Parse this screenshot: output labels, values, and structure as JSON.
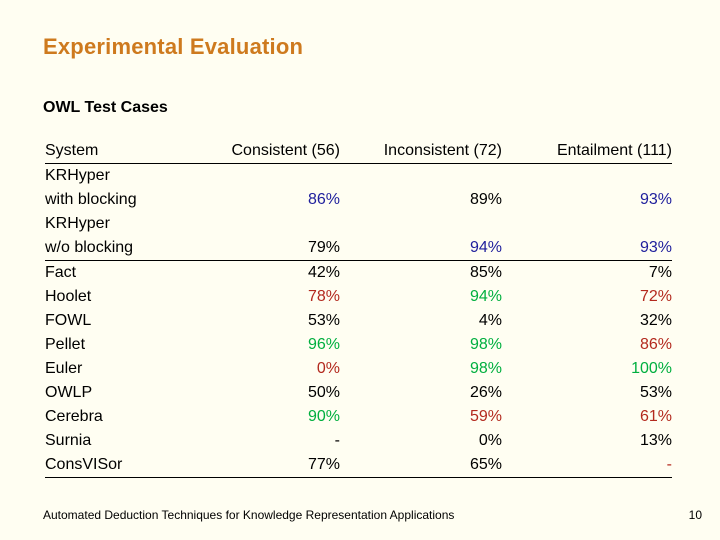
{
  "slide": {
    "title": "Experimental Evaluation",
    "subtitle": "OWL Test Cases",
    "footer": "Automated Deduction Techniques for Knowledge Representation Applications",
    "page_number": "10"
  },
  "colors": {
    "background": "#FFFEF2",
    "title": "#CE7A1E",
    "text": "#000000",
    "blue": "#1E1E9C",
    "green": "#00AF3F",
    "red": "#B3291E"
  },
  "chart_data": {
    "type": "table",
    "columns": [
      "System",
      "Consistent (56)",
      "Inconsistent (72)",
      "Entailment (111)"
    ],
    "lines": [
      {
        "label": "KRHyper",
        "cells": null,
        "rule_below": false
      },
      {
        "label": "with blocking",
        "cells": [
          {
            "t": "86%",
            "c": "blue"
          },
          {
            "t": "89%",
            "c": "text"
          },
          {
            "t": "93%",
            "c": "blue"
          }
        ],
        "rule_below": false
      },
      {
        "label": "KRHyper",
        "cells": null,
        "rule_below": false
      },
      {
        "label": "w/o blocking",
        "cells": [
          {
            "t": "79%",
            "c": "text"
          },
          {
            "t": "94%",
            "c": "blue"
          },
          {
            "t": "93%",
            "c": "blue"
          }
        ],
        "rule_below": true
      },
      {
        "label": "Fact",
        "cells": [
          {
            "t": "42%",
            "c": "text"
          },
          {
            "t": "85%",
            "c": "text"
          },
          {
            "t": "7%",
            "c": "text"
          }
        ],
        "rule_below": false
      },
      {
        "label": "Hoolet",
        "cells": [
          {
            "t": "78%",
            "c": "red"
          },
          {
            "t": "94%",
            "c": "green"
          },
          {
            "t": "72%",
            "c": "red"
          }
        ],
        "rule_below": false
      },
      {
        "label": "FOWL",
        "cells": [
          {
            "t": "53%",
            "c": "text"
          },
          {
            "t": "4%",
            "c": "text"
          },
          {
            "t": "32%",
            "c": "text"
          }
        ],
        "rule_below": false
      },
      {
        "label": "Pellet",
        "cells": [
          {
            "t": "96%",
            "c": "green"
          },
          {
            "t": "98%",
            "c": "green"
          },
          {
            "t": "86%",
            "c": "red"
          }
        ],
        "rule_below": false
      },
      {
        "label": "Euler",
        "cells": [
          {
            "t": "0%",
            "c": "red"
          },
          {
            "t": "98%",
            "c": "green"
          },
          {
            "t": "100%",
            "c": "green"
          }
        ],
        "rule_below": false
      },
      {
        "label": "OWLP",
        "cells": [
          {
            "t": "50%",
            "c": "text"
          },
          {
            "t": "26%",
            "c": "text"
          },
          {
            "t": "53%",
            "c": "text"
          }
        ],
        "rule_below": false
      },
      {
        "label": "Cerebra",
        "cells": [
          {
            "t": "90%",
            "c": "green"
          },
          {
            "t": "59%",
            "c": "red"
          },
          {
            "t": "61%",
            "c": "red"
          }
        ],
        "rule_below": false
      },
      {
        "label": "Surnia",
        "cells": [
          {
            "t": "-",
            "c": "text"
          },
          {
            "t": "0%",
            "c": "text"
          },
          {
            "t": "13%",
            "c": "text"
          }
        ],
        "rule_below": false
      },
      {
        "label": "ConsVISor",
        "cells": [
          {
            "t": "77%",
            "c": "text"
          },
          {
            "t": "65%",
            "c": "text"
          },
          {
            "t": "-",
            "c": "red"
          }
        ],
        "rule_below": false
      }
    ]
  }
}
